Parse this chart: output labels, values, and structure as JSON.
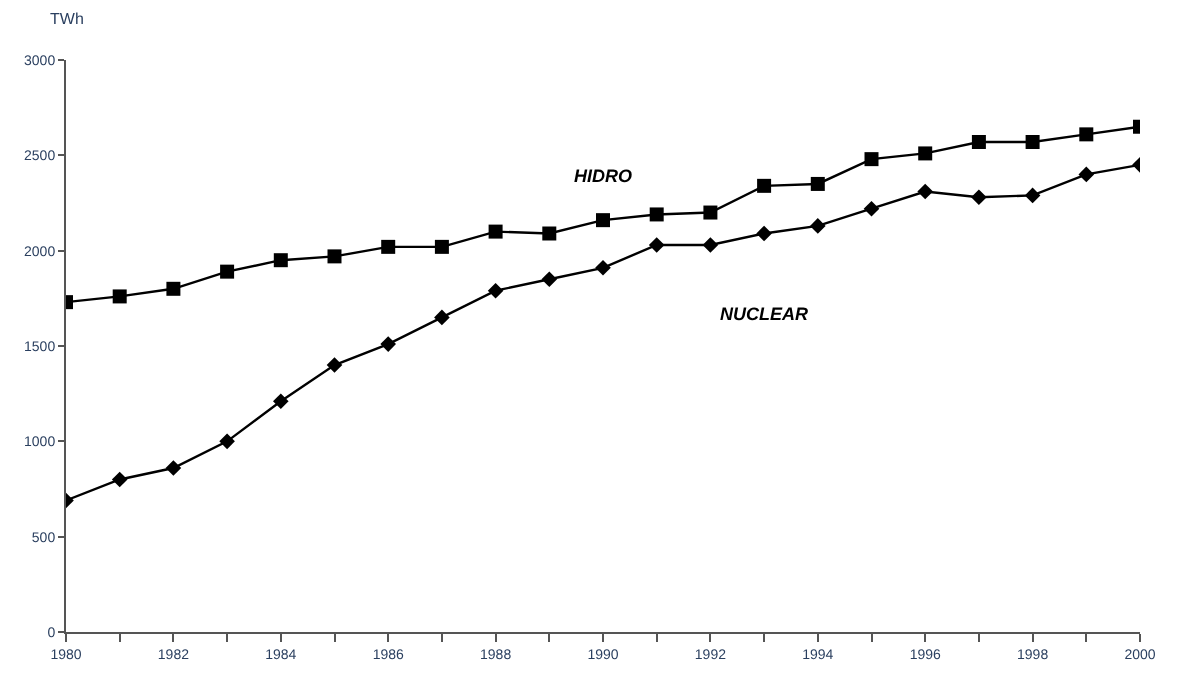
{
  "chart_data": {
    "type": "line",
    "ylabel": "TWh",
    "x": [
      1980,
      1981,
      1982,
      1983,
      1984,
      1985,
      1986,
      1987,
      1988,
      1989,
      1990,
      1991,
      1992,
      1993,
      1994,
      1995,
      1996,
      1997,
      1998,
      1999,
      2000
    ],
    "series": [
      {
        "name": "HIDRO",
        "color": "#000000",
        "marker": "square",
        "values": [
          1730,
          1760,
          1800,
          1890,
          1950,
          1970,
          2020,
          2020,
          2100,
          2090,
          2160,
          2190,
          2200,
          2340,
          2350,
          2480,
          2510,
          2570,
          2570,
          2610,
          2650
        ]
      },
      {
        "name": "NUCLEAR",
        "color": "#000000",
        "marker": "diamond",
        "values": [
          690,
          800,
          860,
          1000,
          1210,
          1400,
          1510,
          1650,
          1790,
          1850,
          1910,
          2030,
          2030,
          2090,
          2130,
          2220,
          2310,
          2280,
          2290,
          2400,
          2450
        ]
      }
    ],
    "xlim": [
      1980,
      2000
    ],
    "xticks": [
      1980,
      {
        "value": 1981,
        "label": null
      },
      1982,
      {
        "value": 1983,
        "label": null
      },
      1984,
      {
        "value": 1985,
        "label": null
      },
      1986,
      {
        "value": 1987,
        "label": null
      },
      1988,
      {
        "value": 1989,
        "label": null
      },
      1990,
      {
        "value": 1991,
        "label": null
      },
      1992,
      {
        "value": 1993,
        "label": null
      },
      1994,
      {
        "value": 1995,
        "label": null
      },
      1996,
      {
        "value": 1997,
        "label": null
      },
      1998,
      {
        "value": 1999,
        "label": null
      },
      2000
    ],
    "ylim": [
      0,
      3000
    ],
    "yticks": [
      0,
      500,
      1000,
      1500,
      2000,
      2500,
      3000
    ],
    "legend": false,
    "line_style": "solid"
  }
}
